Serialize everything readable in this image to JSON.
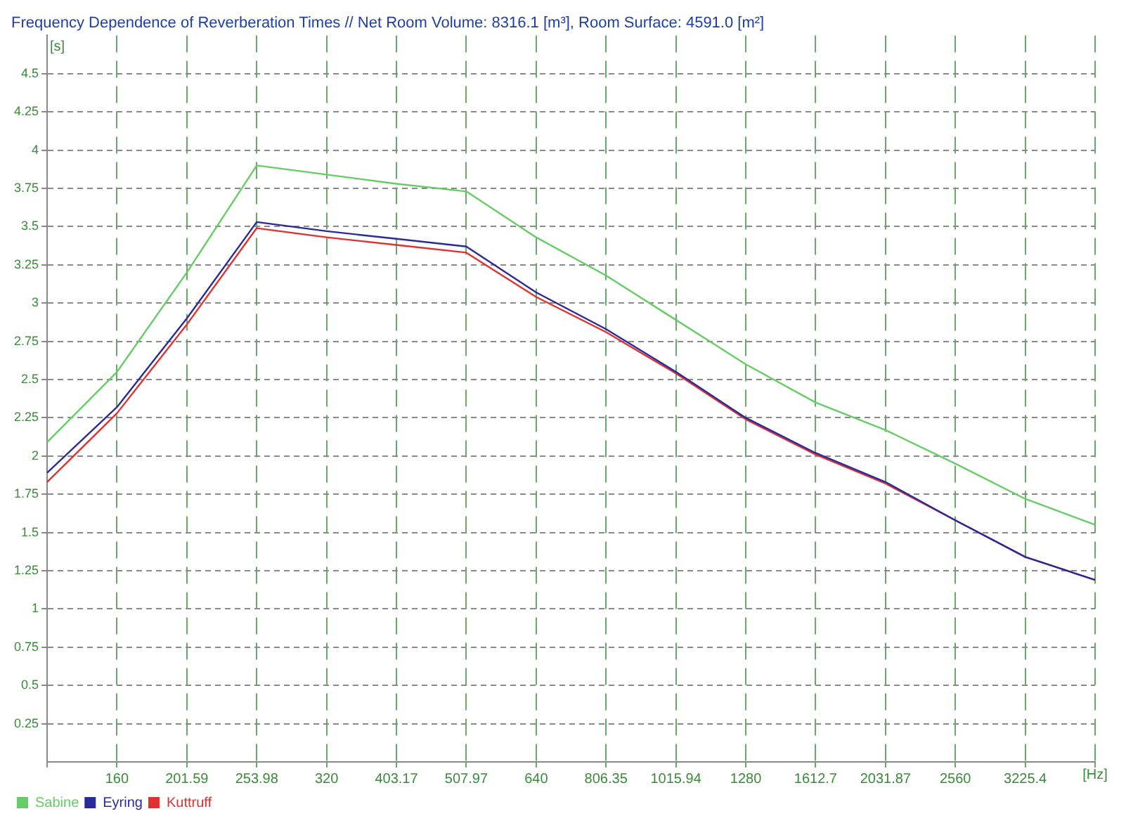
{
  "chart_data": {
    "type": "line",
    "title": "Frequency Dependence of Reverberation Times // Net Room Volume: 8316.1 [m³], Room Surface: 4591.0 [m²]",
    "ylabel": "[s]",
    "xlabel": "[Hz]",
    "categories": [
      null,
      "160",
      "201.59",
      "253.98",
      "320",
      "403.17",
      "507.97",
      "640",
      "806.35",
      "1015.94",
      "1280",
      "1612.7",
      "2031.87",
      "2560",
      "3225.4",
      null
    ],
    "series": [
      {
        "name": "Sabine",
        "color": "#66cc66",
        "values": [
          2.09,
          2.55,
          3.2,
          3.9,
          3.84,
          3.78,
          3.73,
          3.43,
          3.18,
          2.89,
          2.6,
          2.35,
          2.17,
          1.95,
          1.72,
          1.55
        ]
      },
      {
        "name": "Eyring",
        "color": "#2a2a9a",
        "values": [
          1.89,
          2.32,
          2.9,
          3.53,
          3.47,
          3.42,
          3.37,
          3.07,
          2.83,
          2.55,
          2.25,
          2.02,
          1.83,
          1.58,
          1.34,
          1.19
        ]
      },
      {
        "name": "Kuttruff",
        "color": "#e03030",
        "values": [
          1.83,
          2.28,
          2.86,
          3.49,
          3.43,
          3.38,
          3.33,
          3.04,
          2.81,
          2.54,
          2.24,
          2.01,
          1.82,
          1.58,
          1.34,
          1.19
        ]
      }
    ],
    "ylim": [
      0,
      4.75
    ],
    "yticks": [
      0.25,
      0.5,
      0.75,
      1,
      1.25,
      1.5,
      1.75,
      2,
      2.25,
      2.5,
      2.75,
      3,
      3.25,
      3.5,
      3.75,
      4,
      4.25,
      4.5
    ],
    "grid": true,
    "legend": "bottom left",
    "marker": "none",
    "line_style": "solid"
  }
}
